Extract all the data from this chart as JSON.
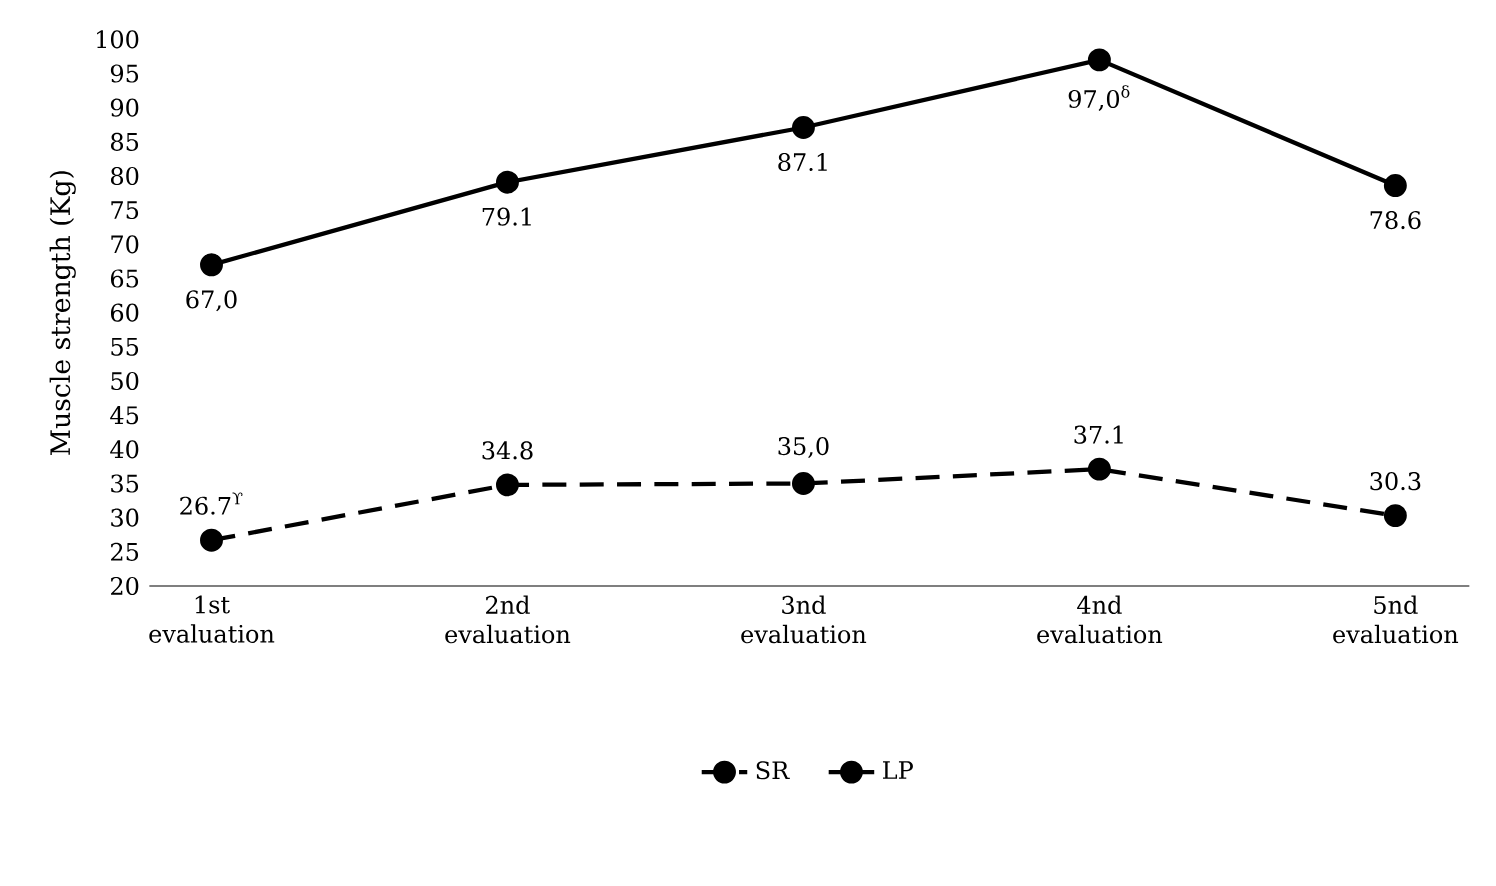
{
  "chart_data": {
    "type": "line",
    "ylabel": "Muscle strength (Kg)",
    "categories": [
      "1st evaluation",
      "2nd evaluation",
      "3nd evaluation",
      "4nd evaluation",
      "5nd evaluation"
    ],
    "series": [
      {
        "name": "SR",
        "color": "#000000",
        "line_style": "dashed",
        "values": [
          26.7,
          34.8,
          35.0,
          37.1,
          30.3
        ],
        "value_labels": [
          "26.7$^{ϒ}$",
          "34.8",
          "35,0",
          "37.1",
          "30.3"
        ]
      },
      {
        "name": "LP",
        "color": "#000000",
        "line_style": "solid",
        "values": [
          67.0,
          79.1,
          87.1,
          97.0,
          78.6
        ],
        "value_labels": [
          "67,0",
          "79.1",
          "87.1",
          "97,0$^{δ}$",
          "78.6"
        ]
      }
    ],
    "ylim": [
      20,
      100
    ],
    "yticks": [
      20,
      25,
      30,
      35,
      40,
      45,
      50,
      55,
      60,
      65,
      70,
      75,
      80,
      85,
      90,
      95,
      100
    ],
    "grid": false,
    "legend": "bottom",
    "marker": "circle"
  }
}
